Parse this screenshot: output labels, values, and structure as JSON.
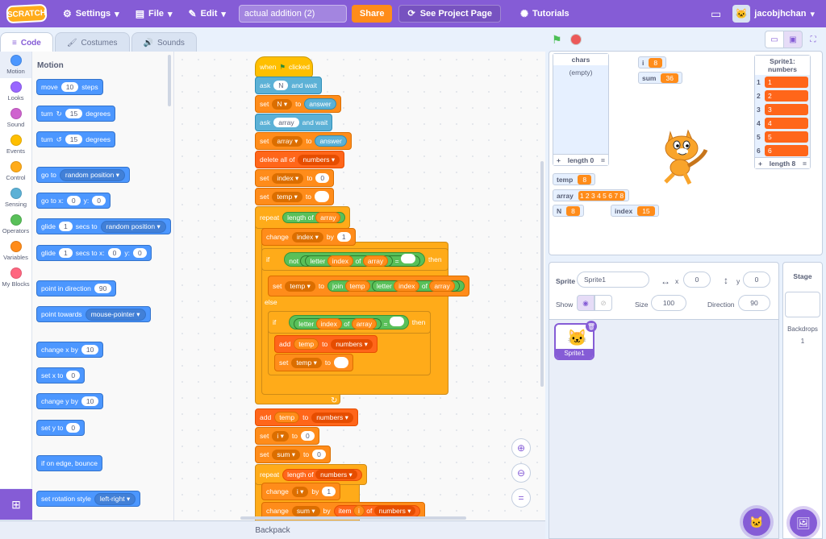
{
  "menubar": {
    "logo": "SCRATCH",
    "settings": "Settings",
    "file": "File",
    "edit": "Edit",
    "project_title": "actual addition (2)",
    "share": "Share",
    "see_project": "See Project Page",
    "tutorials": "Tutorials",
    "username": "jacobjhchan"
  },
  "tabs": {
    "code": "Code",
    "costumes": "Costumes",
    "sounds": "Sounds"
  },
  "categories": [
    {
      "label": "Motion",
      "color": "#4c97ff"
    },
    {
      "label": "Looks",
      "color": "#9966ff"
    },
    {
      "label": "Sound",
      "color": "#cf63cf"
    },
    {
      "label": "Events",
      "color": "#ffbf00"
    },
    {
      "label": "Control",
      "color": "#ffab19"
    },
    {
      "label": "Sensing",
      "color": "#5cb1d6"
    },
    {
      "label": "Operators",
      "color": "#59c059"
    },
    {
      "label": "Variables",
      "color": "#ff8c1a"
    },
    {
      "label": "My Blocks",
      "color": "#ff6680"
    }
  ],
  "palette": {
    "title": "Motion",
    "move": {
      "a": "move",
      "v": "10",
      "b": "steps"
    },
    "turn_cw": {
      "a": "turn",
      "v": "15",
      "b": "degrees"
    },
    "turn_ccw": {
      "a": "turn",
      "v": "15",
      "b": "degrees"
    },
    "goto": {
      "a": "go to",
      "dd": "random position"
    },
    "gotoxy": {
      "a": "go to x:",
      "x": "0",
      "b": "y:",
      "y": "0"
    },
    "glide": {
      "a": "glide",
      "v": "1",
      "b": "secs to",
      "dd": "random position"
    },
    "glidexy": {
      "a": "glide",
      "v": "1",
      "b": "secs to x:",
      "x": "0",
      "c": "y:",
      "y": "0"
    },
    "point_dir": {
      "a": "point in direction",
      "v": "90"
    },
    "point_towards": {
      "a": "point towards",
      "dd": "mouse-pointer"
    },
    "change_x": {
      "a": "change x by",
      "v": "10"
    },
    "set_x": {
      "a": "set x to",
      "v": "0"
    },
    "change_y": {
      "a": "change y by",
      "v": "10"
    },
    "set_y": {
      "a": "set y to",
      "v": "0"
    },
    "bounce": {
      "a": "if on edge, bounce"
    },
    "rotation": {
      "a": "set rotation style",
      "dd": "left-right"
    }
  },
  "script": {
    "when_clicked": {
      "a": "when",
      "b": "clicked"
    },
    "ask1": {
      "a": "ask",
      "v": "N",
      "b": "and wait"
    },
    "set_n": {
      "a": "set",
      "var": "N",
      "b": "to",
      "v": "answer"
    },
    "ask2": {
      "a": "ask",
      "v": "array",
      "b": "and wait"
    },
    "set_array": {
      "a": "set",
      "var": "array",
      "b": "to",
      "v": "answer"
    },
    "delete_all": {
      "a": "delete all of",
      "list": "numbers"
    },
    "set_index": {
      "a": "set",
      "var": "index",
      "b": "to",
      "v": "0"
    },
    "set_temp": {
      "a": "set",
      "var": "temp",
      "b": "to"
    },
    "repeat1": {
      "a": "repeat",
      "b": "length of",
      "v": "array"
    },
    "change_index": {
      "a": "change",
      "var": "index",
      "b": "by",
      "v": "1"
    },
    "if1": {
      "a": "if",
      "not": "not",
      "letter": "letter",
      "idx": "index",
      "of": "of",
      "arr": "array",
      "eq": "=",
      "then": "then"
    },
    "set_temp_join": {
      "a": "set",
      "var": "temp",
      "b": "to",
      "join": "join",
      "t": "temp",
      "letter": "letter",
      "idx": "index",
      "of": "of",
      "arr": "array"
    },
    "else": "else",
    "if2": {
      "a": "if",
      "letter": "letter",
      "idx": "index",
      "of": "of",
      "arr": "array",
      "eq": "=",
      "then": "then"
    },
    "add_temp": {
      "a": "add",
      "v": "temp",
      "b": "to",
      "list": "numbers"
    },
    "set_temp2": {
      "a": "set",
      "var": "temp",
      "b": "to"
    },
    "add_temp2": {
      "a": "add",
      "v": "temp",
      "b": "to",
      "list": "numbers"
    },
    "set_i": {
      "a": "set",
      "var": "i",
      "b": "to",
      "v": "0"
    },
    "set_sum": {
      "a": "set",
      "var": "sum",
      "b": "to",
      "v": "0"
    },
    "repeat2": {
      "a": "repeat",
      "b": "length of",
      "list": "numbers"
    },
    "change_i": {
      "a": "change",
      "var": "i",
      "b": "by",
      "v": "1"
    },
    "change_sum": {
      "a": "change",
      "var": "sum",
      "b": "by",
      "item": "item",
      "iv": "i",
      "of": "of",
      "list": "numbers"
    }
  },
  "backpack": "Backpack",
  "monitors": {
    "chars": {
      "title": "chars",
      "empty": "(empty)",
      "foot": "length 0"
    },
    "i": {
      "label": "i",
      "value": "8"
    },
    "sum": {
      "label": "sum",
      "value": "36"
    },
    "temp": {
      "label": "temp",
      "value": "8"
    },
    "array": {
      "label": "array",
      "value": "1 2 3 4 5 6 7 8"
    },
    "n": {
      "label": "N",
      "value": "8"
    },
    "index": {
      "label": "index",
      "value": "15"
    },
    "numbers": {
      "title": "Sprite1: numbers",
      "items": [
        "1",
        "2",
        "3",
        "4",
        "5",
        "6"
      ],
      "foot": "length 8"
    }
  },
  "sprite_info": {
    "sprite_label": "Sprite",
    "sprite_name": "Sprite1",
    "x_label": "x",
    "x": "0",
    "y_label": "y",
    "y": "0",
    "show_label": "Show",
    "size_label": "Size",
    "size": "100",
    "direction_label": "Direction",
    "direction": "90"
  },
  "sprite_tile": "Sprite1",
  "stage_panel": {
    "title": "Stage",
    "backdrops": "Backdrops",
    "count": "1"
  }
}
